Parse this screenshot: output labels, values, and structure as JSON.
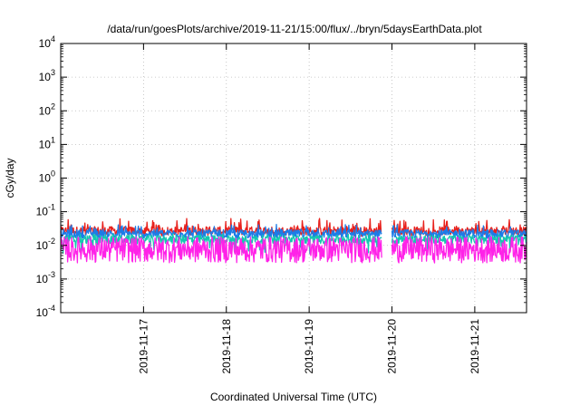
{
  "chart_data": {
    "type": "line",
    "title": "/data/run/goesPlots/archive/2019-11-21/15:00/flux/../bryn/5daysEarthData.plot",
    "xlabel": "Coordinated Universal Time (UTC)",
    "ylabel": "cGy/day",
    "yscale": "log",
    "ylim": [
      0.0001,
      10000
    ],
    "xlim": [
      "2019-11-16 00:00",
      "2019-11-21 15:00"
    ],
    "ytick_values": [
      0.0001,
      0.001,
      0.01,
      0.1,
      1,
      10,
      100,
      1000,
      10000
    ],
    "ytick_mantissa": "10",
    "ytick_exponents": [
      "-4",
      "-3",
      "-2",
      "-1",
      "0",
      "1",
      "2",
      "3",
      "4"
    ],
    "xtick_labels": [
      "2019-11-17",
      "2019-11-18",
      "2019-11-19",
      "2019-11-20",
      "2019-11-21"
    ],
    "xtick_days": [
      1,
      2,
      3,
      4,
      5
    ],
    "grid": true,
    "legend": "none",
    "data_gap": [
      "2019-11-19 21:00",
      "2019-11-20 00:00"
    ],
    "series": [
      {
        "color": "#e8211c",
        "level": 0.027,
        "spike": 0.065,
        "dip": 0.018
      },
      {
        "color": "#1c7be8",
        "level": 0.022,
        "spike": 0.042,
        "dip": 0.015
      },
      {
        "color": "#14c8b0",
        "level": 0.015,
        "spike": 0.022,
        "dip": 0.0055
      },
      {
        "color": "#ff22e8",
        "level": 0.0045,
        "spike": 0.018,
        "dip": 0.003
      }
    ]
  }
}
